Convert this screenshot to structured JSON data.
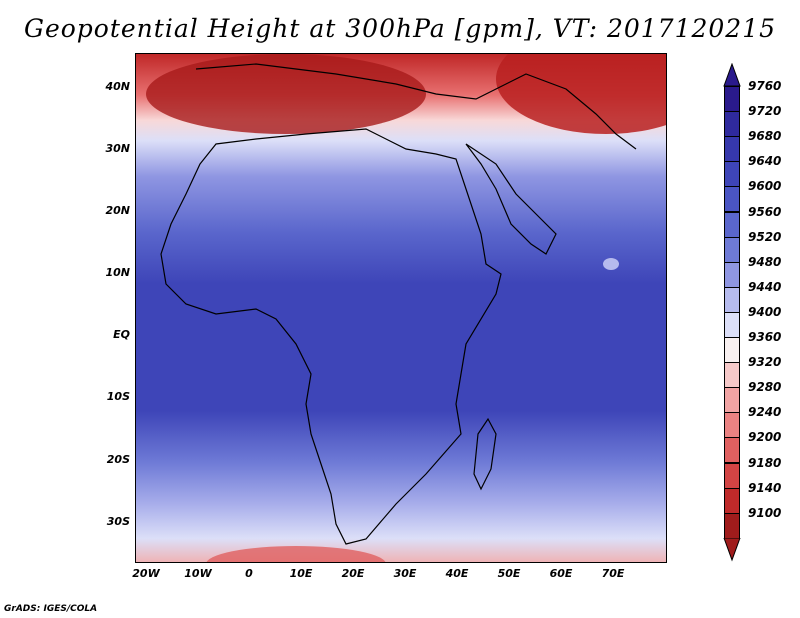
{
  "title": "Geopotential Height at 300hPa [gpm], VT: 2017120215",
  "credit": "GrADS: IGES/COLA",
  "map": {
    "lat_ticks": [
      "40N",
      "30N",
      "20N",
      "10N",
      "EQ",
      "10S",
      "20S",
      "30S"
    ],
    "lon_ticks": [
      "20W",
      "10W",
      "0",
      "10E",
      "20E",
      "30E",
      "40E",
      "50E",
      "60E",
      "70E"
    ]
  },
  "colorbar": {
    "levels": [
      "9760",
      "9720",
      "9680",
      "9640",
      "9600",
      "9560",
      "9520",
      "9480",
      "9440",
      "9400",
      "9360",
      "9320",
      "9280",
      "9240",
      "9200",
      "9180",
      "9140",
      "9100"
    ],
    "colors": [
      "#2a1a8c",
      "#2f2a9e",
      "#3638ac",
      "#3e45b8",
      "#4a55c4",
      "#5a66cc",
      "#6e7ad6",
      "#8f96e2",
      "#b6bbee",
      "#dcdff8",
      "#f8f0f0",
      "#f6c9c9",
      "#f1a4a4",
      "#ea8282",
      "#e06060",
      "#d24444",
      "#bf2a2a",
      "#a01c1c"
    ]
  }
}
